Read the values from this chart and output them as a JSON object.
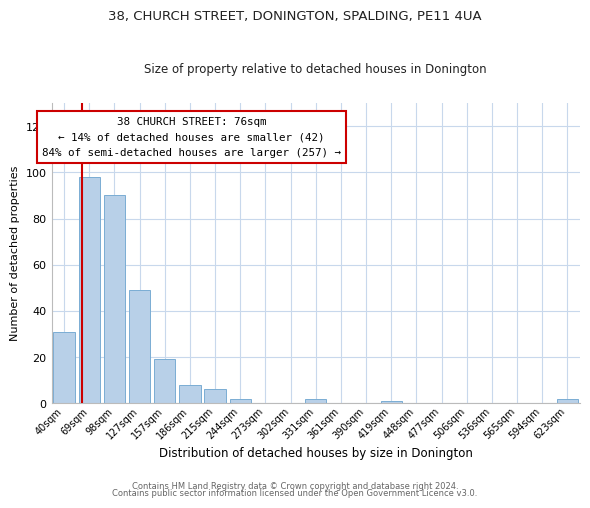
{
  "title1": "38, CHURCH STREET, DONINGTON, SPALDING, PE11 4UA",
  "title2": "Size of property relative to detached houses in Donington",
  "xlabel": "Distribution of detached houses by size in Donington",
  "ylabel": "Number of detached properties",
  "bar_labels": [
    "40sqm",
    "69sqm",
    "98sqm",
    "127sqm",
    "157sqm",
    "186sqm",
    "215sqm",
    "244sqm",
    "273sqm",
    "302sqm",
    "331sqm",
    "361sqm",
    "390sqm",
    "419sqm",
    "448sqm",
    "477sqm",
    "506sqm",
    "536sqm",
    "565sqm",
    "594sqm",
    "623sqm"
  ],
  "bar_values": [
    31,
    98,
    90,
    49,
    19,
    8,
    6,
    2,
    0,
    0,
    2,
    0,
    0,
    1,
    0,
    0,
    0,
    0,
    0,
    0,
    2
  ],
  "bar_color": "#b8d0e8",
  "bar_edge_color": "#7aadd4",
  "ylim": [
    0,
    130
  ],
  "yticks": [
    0,
    20,
    40,
    60,
    80,
    100,
    120
  ],
  "marker_color": "#cc0000",
  "annotation_title": "38 CHURCH STREET: 76sqm",
  "annotation_line1": "← 14% of detached houses are smaller (42)",
  "annotation_line2": "84% of semi-detached houses are larger (257) →",
  "annotation_box_color": "#ffffff",
  "annotation_box_edge": "#cc0000",
  "footer1": "Contains HM Land Registry data © Crown copyright and database right 2024.",
  "footer2": "Contains public sector information licensed under the Open Government Licence v3.0.",
  "background_color": "#ffffff",
  "grid_color": "#c8d8ec"
}
